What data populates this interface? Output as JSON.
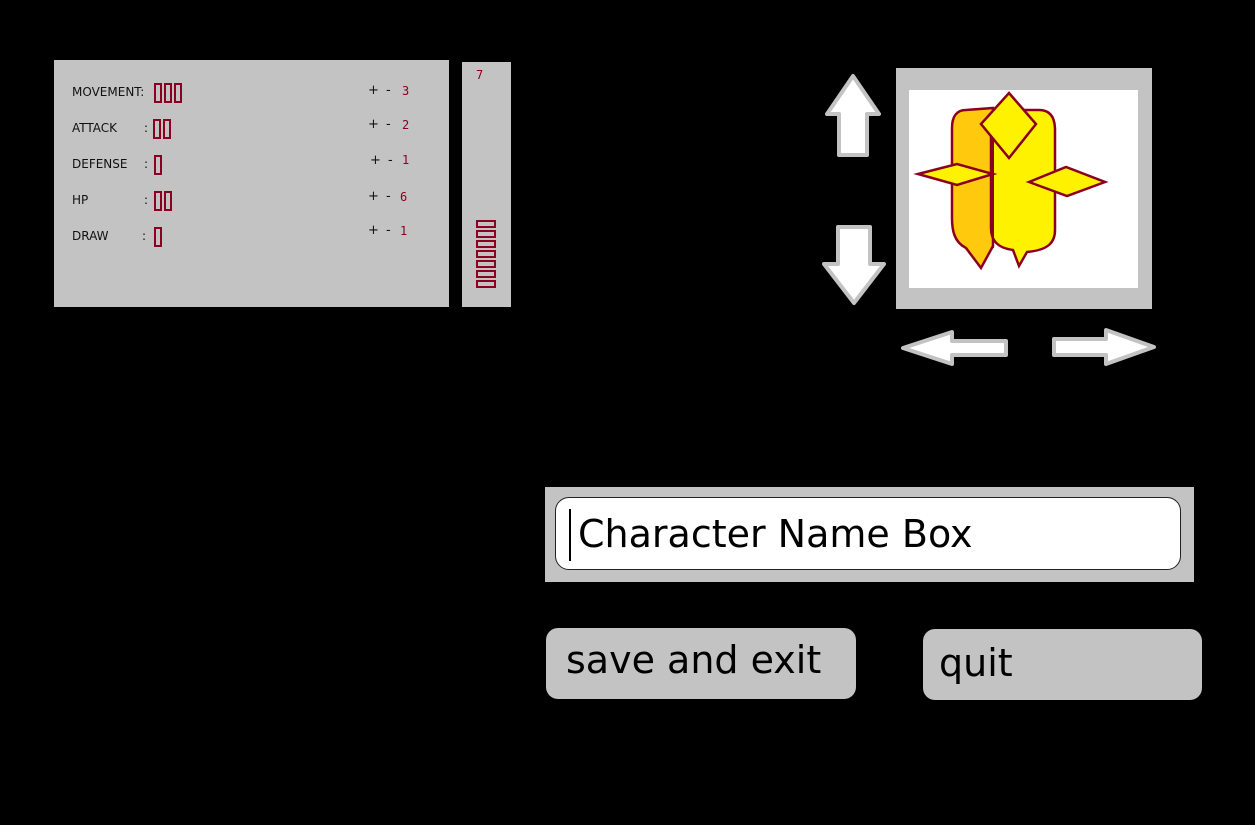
{
  "stats": [
    {
      "name": "MOVEMENT:",
      "colon": "",
      "bars": 3,
      "plus": "+",
      "minus": "-",
      "value": "3"
    },
    {
      "name": "ATTACK",
      "colon": ":",
      "bars": 2,
      "plus": "+",
      "minus": "-",
      "value": "2"
    },
    {
      "name": "DEFENSE",
      "colon": ":",
      "bars": 1,
      "plus": "+",
      "minus": "-",
      "value": "1"
    },
    {
      "name": "HP",
      "colon": ":",
      "bars": 2,
      "plus": "+",
      "minus": "-",
      "value": "6"
    },
    {
      "name": "DRAW",
      "colon": ":",
      "bars": 1,
      "plus": "+",
      "minus": "-",
      "value": "1"
    }
  ],
  "pool": {
    "count": "7",
    "bars": 7
  },
  "name_box": {
    "value": "Character Name Box"
  },
  "buttons": {
    "save": "save and exit",
    "quit": "quit"
  },
  "colors": {
    "accent": "#8b0020",
    "panel": "#c3c3c3",
    "background": "#000000",
    "sprite_light": "#fff200",
    "sprite_dark": "#ffc90e"
  },
  "icons": [
    "arrow-up-icon",
    "arrow-down-icon",
    "arrow-left-icon",
    "arrow-right-icon",
    "character-sprite-icon"
  ]
}
